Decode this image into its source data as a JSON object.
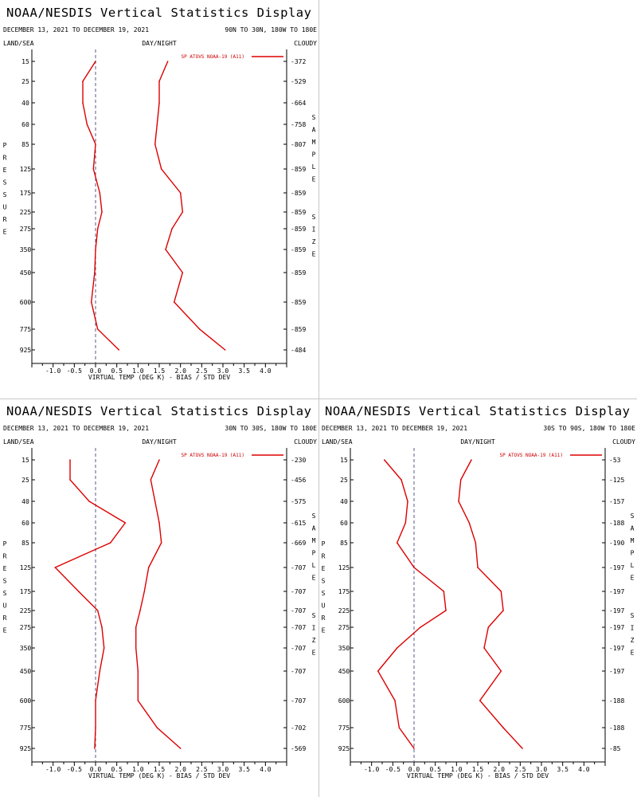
{
  "colors": {
    "line": "#dd0000",
    "axis": "#000000",
    "zero_line": "#5a5a8a",
    "divider": "#c8c8c8"
  },
  "chart_data": [
    {
      "type": "line",
      "title": "NOAA/NESDIS Vertical Statistics Display",
      "dates": "DECEMBER 13, 2021 TO DECEMBER 19, 2021",
      "region": "90N TO 30N, 180W TO 180E",
      "corner_left": "LAND/SEA",
      "corner_center": "DAY/NIGHT",
      "corner_right": "CLOUDY",
      "ylabel": "PRESSURE",
      "y2label": "SAMPLE SIZE",
      "xlabel": "VIRTUAL TEMP (DEG K) - BIAS / STD DEV",
      "legend": "SP ATOVS NOAA-19 (A11)",
      "legend_position": "top-right",
      "xlim": [
        -1.5,
        4.5
      ],
      "x_ticks": [
        "-1.0",
        "-0.5",
        "0.0",
        "0.5",
        "1.0",
        "1.5",
        "2.0",
        "2.5",
        "3.0",
        "3.5",
        "4.0"
      ],
      "pressure_levels": [
        "15",
        "25",
        "40",
        "60",
        "85",
        "125",
        "175",
        "225",
        "275",
        "350",
        "450",
        "600",
        "775",
        "925"
      ],
      "sample_size": [
        "372",
        "529",
        "664",
        "758",
        "807",
        "859",
        "859",
        "859",
        "859",
        "859",
        "859",
        "859",
        "859",
        "484"
      ],
      "series": [
        {
          "values": [
            0.0,
            -0.3,
            -0.3,
            -0.2,
            0.0,
            -0.05,
            0.1,
            0.15,
            0.05,
            0.0,
            -0.02,
            -0.1,
            0.05,
            0.55
          ]
        },
        {
          "values": [
            1.7,
            1.5,
            1.5,
            1.45,
            1.4,
            1.55,
            2.0,
            2.05,
            1.8,
            1.65,
            2.05,
            1.85,
            2.45,
            3.05
          ]
        }
      ]
    },
    {
      "type": "line",
      "title": "NOAA/NESDIS Vertical Statistics Display",
      "dates": "DECEMBER 13, 2021 TO DECEMBER 19, 2021",
      "region": "30N TO 30S, 180W TO 180E",
      "corner_left": "LAND/SEA",
      "corner_center": "DAY/NIGHT",
      "corner_right": "CLOUDY",
      "ylabel": "PRESSURE",
      "y2label": "SAMPLE SIZE",
      "xlabel": "VIRTUAL TEMP (DEG K) - BIAS / STD DEV",
      "legend": "SP ATOVS NOAA-19 (A11)",
      "legend_position": "top-right",
      "xlim": [
        -1.5,
        4.5
      ],
      "x_ticks": [
        "-1.0",
        "-0.5",
        "0.0",
        "0.5",
        "1.0",
        "1.5",
        "2.0",
        "2.5",
        "3.0",
        "3.5",
        "4.0"
      ],
      "pressure_levels": [
        "15",
        "25",
        "40",
        "60",
        "85",
        "125",
        "175",
        "225",
        "275",
        "350",
        "450",
        "600",
        "775",
        "925"
      ],
      "sample_size": [
        "230",
        "456",
        "575",
        "615",
        "669",
        "707",
        "707",
        "707",
        "707",
        "707",
        "707",
        "707",
        "702",
        "569"
      ],
      "series": [
        {
          "values": [
            -0.6,
            -0.6,
            -0.15,
            0.7,
            0.35,
            -0.95,
            -0.4,
            0.05,
            0.15,
            0.2,
            0.1,
            0.0,
            0.0,
            -0.02
          ]
        },
        {
          "values": [
            1.5,
            1.3,
            1.4,
            1.5,
            1.55,
            1.25,
            1.15,
            1.05,
            0.95,
            0.95,
            1.0,
            1.0,
            1.45,
            2.0
          ]
        }
      ]
    },
    {
      "type": "line",
      "title": "NOAA/NESDIS Vertical Statistics Display",
      "dates": "DECEMBER 13, 2021 TO DECEMBER 19, 2021",
      "region": "30S TO 90S, 180W TO 180E",
      "corner_left": "LAND/SEA",
      "corner_center": "DAY/NIGHT",
      "corner_right": "CLOUDY",
      "ylabel": "PRESSURE",
      "y2label": "SAMPLE SIZE",
      "xlabel": "VIRTUAL TEMP (DEG K) - BIAS / STD DEV",
      "legend": "SP ATOVS NOAA-19 (A11)",
      "legend_position": "top-right",
      "xlim": [
        -1.5,
        4.5
      ],
      "x_ticks": [
        "-1.0",
        "-0.5",
        "0.0",
        "0.5",
        "1.0",
        "1.5",
        "2.0",
        "2.5",
        "3.0",
        "3.5",
        "4.0"
      ],
      "pressure_levels": [
        "15",
        "25",
        "40",
        "60",
        "85",
        "125",
        "175",
        "225",
        "275",
        "350",
        "450",
        "600",
        "775",
        "925"
      ],
      "sample_size": [
        "53",
        "125",
        "157",
        "188",
        "190",
        "197",
        "197",
        "197",
        "197",
        "197",
        "197",
        "188",
        "188",
        "85"
      ],
      "series": [
        {
          "values": [
            -0.7,
            -0.3,
            -0.15,
            -0.2,
            -0.4,
            0.0,
            0.7,
            0.75,
            0.15,
            -0.4,
            -0.85,
            -0.45,
            -0.35,
            0.0
          ]
        },
        {
          "values": [
            1.35,
            1.1,
            1.05,
            1.3,
            1.45,
            1.5,
            2.05,
            2.1,
            1.75,
            1.65,
            2.05,
            1.55,
            2.1,
            2.55
          ]
        }
      ]
    }
  ]
}
